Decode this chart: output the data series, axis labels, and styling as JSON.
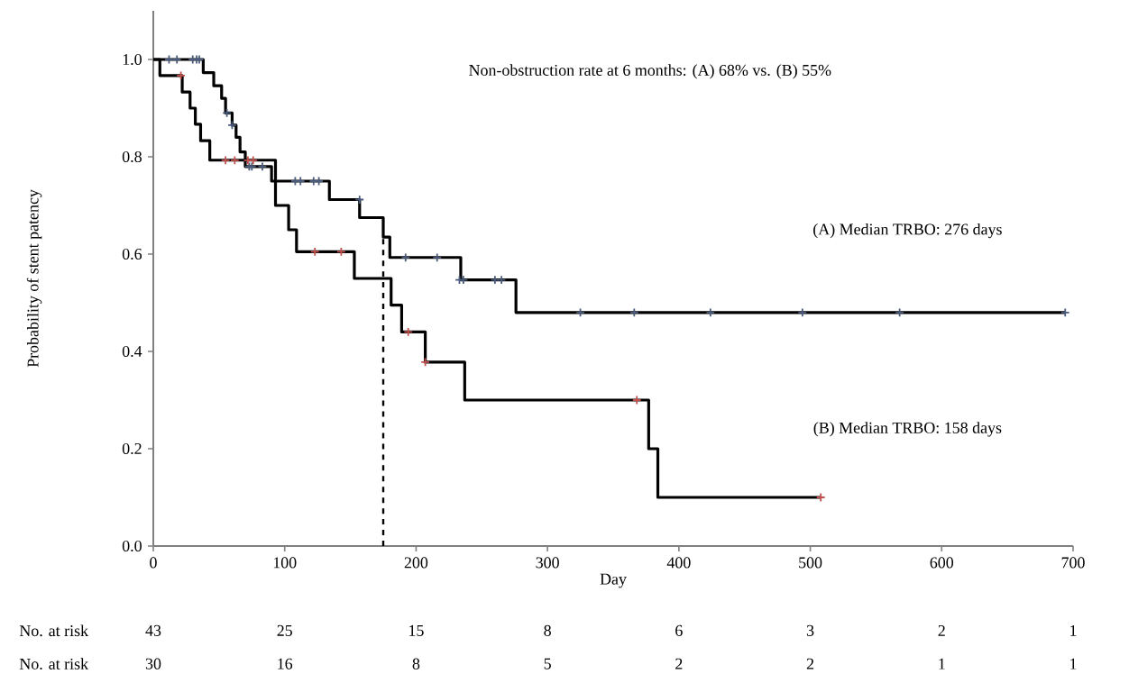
{
  "chart_data": {
    "type": "step",
    "xlabel": "Day",
    "ylabel": "Probability of stent patency",
    "xlim": [
      0,
      700
    ],
    "ylim": [
      0,
      1.1
    ],
    "xticks": [
      0,
      100,
      200,
      300,
      400,
      500,
      600,
      700
    ],
    "yticks": [
      {
        "value": 0,
        "label": "0.0"
      },
      {
        "value": 0.2,
        "label": "0.2"
      },
      {
        "value": 0.4,
        "label": "0.4"
      },
      {
        "value": 0.6,
        "label": "0.6"
      },
      {
        "value": 0.8,
        "label": "0.8"
      },
      {
        "value": 1.0,
        "label": "1.0"
      }
    ],
    "grid": false,
    "line_style": "solid",
    "series": [
      {
        "color": "#000000",
        "x": [
          0,
          38,
          46,
          52,
          55,
          60,
          63,
          66,
          70,
          90,
          134,
          157,
          175,
          180,
          234,
          276,
          694
        ],
        "values": [
          1.0,
          0.973,
          0.946,
          0.92,
          0.89,
          0.865,
          0.84,
          0.81,
          0.78,
          0.75,
          0.712,
          0.675,
          0.635,
          0.593,
          0.547,
          0.48,
          0.48
        ]
      },
      {
        "color": "#000000",
        "x": [
          0,
          5,
          22,
          28,
          32,
          36,
          43,
          93,
          103,
          109,
          153,
          181,
          189,
          207,
          237,
          377,
          384,
          508
        ],
        "values": [
          1.0,
          0.967,
          0.933,
          0.9,
          0.867,
          0.833,
          0.793,
          0.7,
          0.65,
          0.605,
          0.55,
          0.495,
          0.44,
          0.378,
          0.3,
          0.2,
          0.1,
          0.1
        ]
      },
      {
        "type": "scatter",
        "marker": "cross",
        "color": "#4a5a7a",
        "x": [
          12,
          18,
          30,
          33,
          35,
          56,
          60,
          73,
          75,
          83,
          108,
          112,
          122,
          126,
          157,
          192,
          216,
          233,
          236,
          260,
          265,
          325,
          366,
          424,
          494,
          568,
          694
        ],
        "values": [
          1.0,
          1.0,
          1.0,
          1.0,
          1.0,
          0.89,
          0.865,
          0.78,
          0.78,
          0.78,
          0.75,
          0.75,
          0.75,
          0.75,
          0.712,
          0.593,
          0.593,
          0.547,
          0.547,
          0.547,
          0.547,
          0.48,
          0.48,
          0.48,
          0.48,
          0.48,
          0.48
        ]
      },
      {
        "type": "scatter",
        "marker": "cross",
        "color": "#c0504d",
        "x": [
          21,
          55,
          62,
          72,
          76,
          123,
          143,
          194,
          207,
          368,
          508
        ],
        "values": [
          0.967,
          0.793,
          0.793,
          0.793,
          0.793,
          0.605,
          0.605,
          0.44,
          0.378,
          0.3,
          0.1
        ]
      }
    ],
    "ref_lines": [
      {
        "axis": "x",
        "value": 175,
        "line_style": "dashed",
        "color": "#000000"
      }
    ],
    "annotations": [
      "Non-obstruction rate at 6 months: (A) 68% vs. (B) 55%",
      "(A) Median TRBO: 276 days",
      "(B) Median TRBO: 158 days",
      "No. at risk",
      "43",
      "25",
      "15",
      "8",
      "6",
      "3",
      "2",
      "1",
      "No. at risk",
      "30",
      "16",
      "8",
      "5",
      "2",
      "2",
      "1",
      "1"
    ]
  }
}
